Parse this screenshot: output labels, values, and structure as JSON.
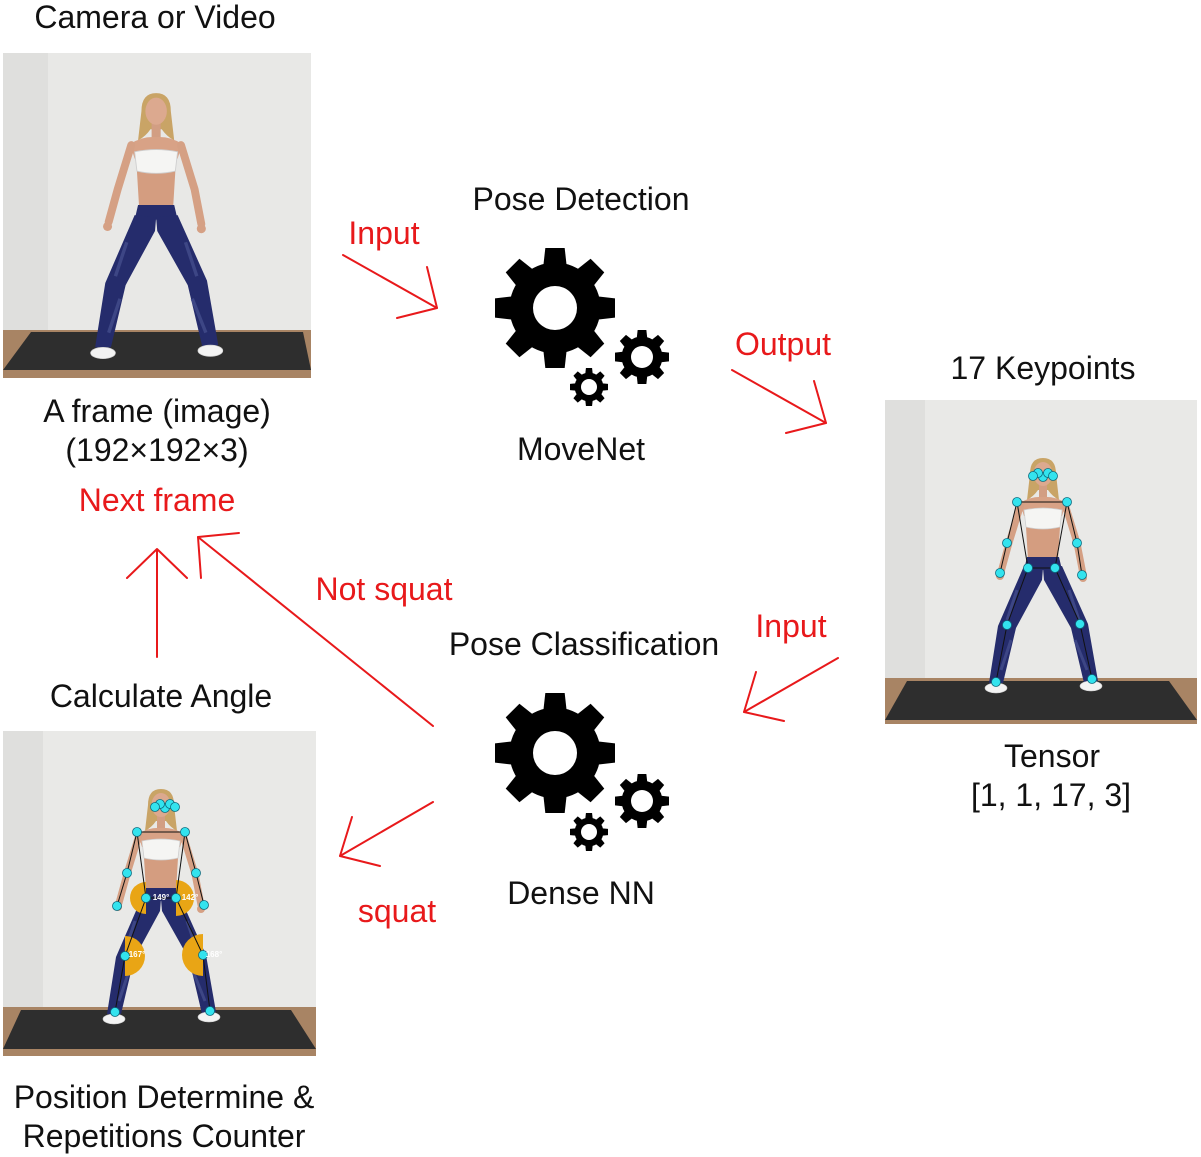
{
  "diagram": {
    "nodes": {
      "input_frame": {
        "title": "Camera or Video",
        "caption": [
          "A frame (image)",
          "(192×192×3)"
        ]
      },
      "pose_detection": {
        "title": "Pose Detection",
        "model": "MoveNet"
      },
      "keypoints": {
        "title": "17 Keypoints",
        "caption": [
          "Tensor",
          "[1, 1, 17, 3]"
        ]
      },
      "pose_classification": {
        "title": "Pose Classification",
        "model": "Dense NN"
      },
      "angle": {
        "title": "Calculate Angle",
        "caption": [
          "Position Determine &",
          "Repetitions Counter"
        ],
        "angle_labels": [
          "149°",
          "142°",
          "167°",
          "168°"
        ]
      },
      "next_frame": {
        "label": "Next frame"
      }
    },
    "edges": {
      "frame_to_detection": {
        "label": "Input"
      },
      "detection_to_keypoints": {
        "label": "Output"
      },
      "keypoints_to_classification": {
        "label": "Input"
      },
      "classification_to_angle": {
        "label": "squat"
      },
      "classification_to_next_frame": {
        "label": "Not squat"
      },
      "angle_to_next_frame": {}
    }
  },
  "icons": {
    "model": "gears-icon"
  },
  "colors": {
    "edge": "#e8191b",
    "label": "#e8191b",
    "text": "#111111",
    "keypoint": "#33e3ee",
    "skeleton": "#111111",
    "angle_marker": "#e9a515"
  }
}
